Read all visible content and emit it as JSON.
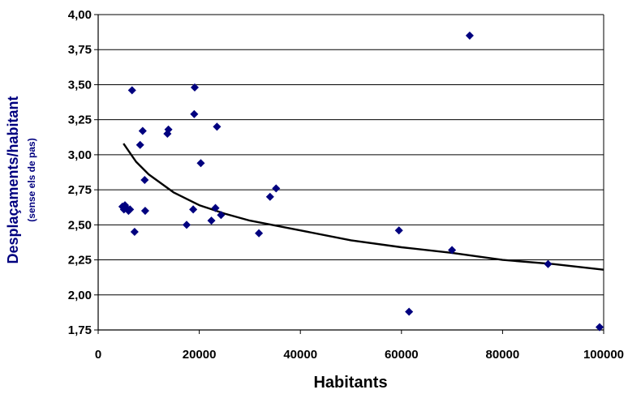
{
  "chart_data": {
    "type": "scatter",
    "title": "",
    "xlabel": "Habitants",
    "ylabel": "Desplaçaments/habitant",
    "ylabel_sub": "(sense els de pas)",
    "xlim": [
      0,
      100000
    ],
    "ylim": [
      1.75,
      4.0
    ],
    "x_ticks": [
      0,
      20000,
      40000,
      60000,
      80000,
      100000
    ],
    "x_tick_labels": [
      "0",
      "20000",
      "40000",
      "60000",
      "80000",
      "100000"
    ],
    "y_ticks": [
      1.75,
      2.0,
      2.25,
      2.5,
      2.75,
      3.0,
      3.25,
      3.5,
      3.75,
      4.0
    ],
    "y_tick_labels": [
      "1,75",
      "2,00",
      "2,25",
      "2,50",
      "2,75",
      "3,00",
      "3,25",
      "3,50",
      "3,75",
      "4,00"
    ],
    "grid": "horizontal",
    "legend": "none",
    "colors": {
      "points": "#00007f",
      "trend": "#000000",
      "axis_title": "#00007f"
    },
    "points": [
      {
        "x": 4800,
        "y": 2.63
      },
      {
        "x": 5100,
        "y": 2.61
      },
      {
        "x": 5300,
        "y": 2.64
      },
      {
        "x": 5600,
        "y": 2.62
      },
      {
        "x": 6000,
        "y": 2.6
      },
      {
        "x": 6300,
        "y": 2.61
      },
      {
        "x": 6700,
        "y": 3.46
      },
      {
        "x": 7200,
        "y": 2.45
      },
      {
        "x": 8300,
        "y": 3.07
      },
      {
        "x": 8800,
        "y": 3.17
      },
      {
        "x": 9200,
        "y": 2.82
      },
      {
        "x": 9300,
        "y": 2.6
      },
      {
        "x": 13700,
        "y": 3.15
      },
      {
        "x": 13900,
        "y": 3.18
      },
      {
        "x": 17500,
        "y": 2.5
      },
      {
        "x": 18800,
        "y": 2.61
      },
      {
        "x": 19000,
        "y": 3.29
      },
      {
        "x": 19100,
        "y": 3.48
      },
      {
        "x": 20300,
        "y": 2.94
      },
      {
        "x": 22400,
        "y": 2.53
      },
      {
        "x": 23200,
        "y": 2.62
      },
      {
        "x": 23500,
        "y": 3.2
      },
      {
        "x": 24300,
        "y": 2.57
      },
      {
        "x": 31800,
        "y": 2.44
      },
      {
        "x": 34000,
        "y": 2.7
      },
      {
        "x": 35200,
        "y": 2.76
      },
      {
        "x": 59500,
        "y": 2.46
      },
      {
        "x": 61500,
        "y": 1.88
      },
      {
        "x": 70000,
        "y": 2.32
      },
      {
        "x": 73500,
        "y": 3.85
      },
      {
        "x": 89000,
        "y": 2.22
      },
      {
        "x": 99200,
        "y": 1.77
      }
    ],
    "trendline": {
      "type": "logarithmic",
      "points": [
        {
          "x": 5000,
          "y": 3.08
        },
        {
          "x": 7500,
          "y": 2.95
        },
        {
          "x": 10000,
          "y": 2.86
        },
        {
          "x": 15000,
          "y": 2.73
        },
        {
          "x": 20000,
          "y": 2.64
        },
        {
          "x": 25000,
          "y": 2.58
        },
        {
          "x": 30000,
          "y": 2.53
        },
        {
          "x": 40000,
          "y": 2.46
        },
        {
          "x": 50000,
          "y": 2.39
        },
        {
          "x": 60000,
          "y": 2.34
        },
        {
          "x": 70000,
          "y": 2.3
        },
        {
          "x": 80000,
          "y": 2.25
        },
        {
          "x": 90000,
          "y": 2.22
        },
        {
          "x": 100000,
          "y": 2.18
        }
      ]
    }
  }
}
